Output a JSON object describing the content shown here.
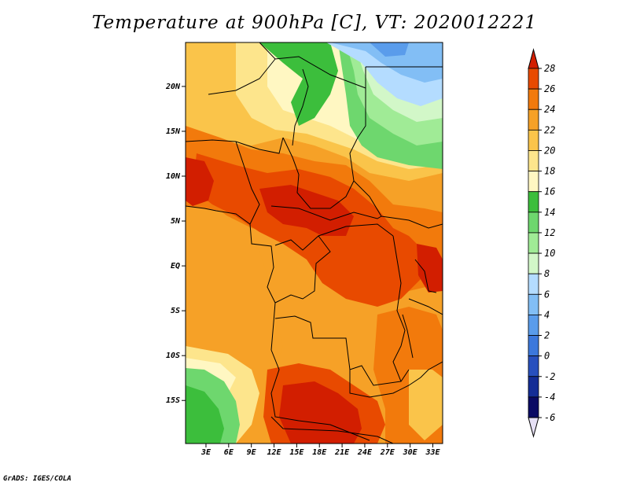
{
  "title": "Temperature at 900hPa [C], VT: 2020012221",
  "credit": "GrADS: IGES/COLA",
  "map": {
    "variable": "Temperature",
    "level": "900hPa",
    "units": "C",
    "valid_time": "2020012221",
    "x_ticks": [
      "3E",
      "6E",
      "9E",
      "12E",
      "15E",
      "18E",
      "21E",
      "24E",
      "27E",
      "30E",
      "33E"
    ],
    "y_ticks": [
      "20N",
      "15N",
      "10N",
      "5N",
      "EQ",
      "5S",
      "10S",
      "15S"
    ]
  },
  "colorbar": {
    "labels": [
      "28",
      "26",
      "24",
      "22",
      "20",
      "18",
      "16",
      "14",
      "12",
      "10",
      "8",
      "6",
      "4",
      "2",
      "0",
      "-2",
      "-4",
      "-6"
    ],
    "colors": [
      "#d21e00",
      "#e84a00",
      "#f27a0c",
      "#f6a127",
      "#fac44a",
      "#fde58c",
      "#fff7c2",
      "#3cbe3c",
      "#6ed76e",
      "#a0eb96",
      "#d2f7c8",
      "#b4dcff",
      "#82bef5",
      "#5a9ceb",
      "#3c78dc",
      "#2850be",
      "#142d96",
      "#0a0a64"
    ],
    "top_arrow_color": "#d21e00",
    "bottom_arrow_color": "#e6e0f5"
  }
}
